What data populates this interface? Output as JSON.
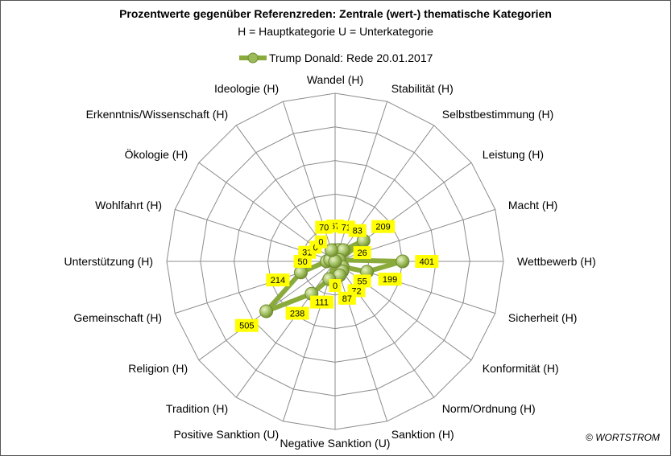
{
  "chart_data": {
    "type": "radar",
    "title": "Prozentwerte gegenüber Referenzreden: Zentrale (wert-) thematische Kategorien",
    "subtitle": "H = Hauptkategorie U = Unterkategorie",
    "categories": [
      "Wandel (H)",
      "Stabilität (H)",
      "Selbstbestimmung (H)",
      "Leistung (H)",
      "Macht (H)",
      "Wettbewerb (H)",
      "Sicherheit (H)",
      "Konformität (H)",
      "Norm/Ordnung (H)",
      "Sanktion (H)",
      "Negative Sanktion (U)",
      "Positive Sanktion (U)",
      "Tradition (H)",
      "Religion (H)",
      "Gemeinschaft (H)",
      "Unterstützung (H)",
      "Wohlfahrt (H)",
      "Ökologie (H)",
      "Erkenntnis/Wissenschaft (H)",
      "Ideologie (H)"
    ],
    "series": [
      {
        "name": "Trump Donald: Rede 20.01.2017",
        "values": [
          67,
          71,
          83,
          209,
          26,
          401,
          199,
          55,
          72,
          87,
          0,
          111,
          238,
          505,
          214,
          50,
          31,
          0,
          0,
          70
        ],
        "labels": [
          "67",
          "71",
          "83",
          "209",
          "26",
          "401",
          "199",
          "55",
          "72",
          "87",
          "0",
          "111",
          "238",
          "505",
          "214",
          "50",
          "31",
          "0",
          "0",
          "70"
        ],
        "color": "#8aaa3c"
      }
    ],
    "rmax": 1000,
    "rings": 5,
    "grid": true,
    "legend": "top",
    "colors": {
      "line": "#8aaa3c",
      "marker": "#9bbb59",
      "label_bg": "#ffff00",
      "grid": "#8c8c8c"
    }
  },
  "credit": "© WORTSTROM"
}
